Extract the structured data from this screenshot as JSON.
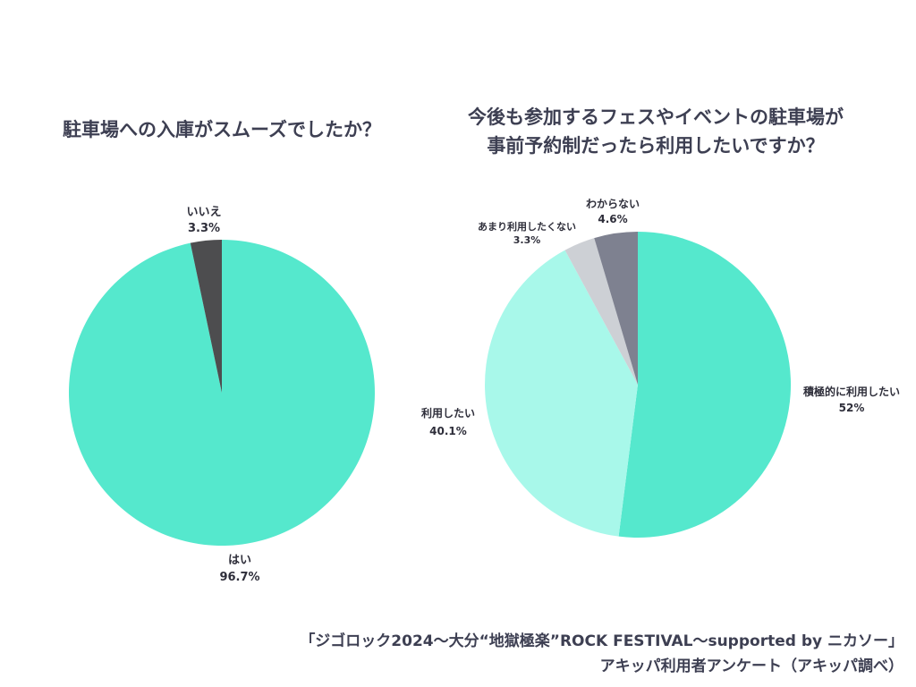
{
  "chart_data": [
    {
      "type": "pie",
      "title": "駐車場への入庫がスムーズでしたか？",
      "slices": [
        {
          "label": "はい",
          "value": 96.7,
          "value_label": "96.7%",
          "color": "#55e8cd"
        },
        {
          "label": "いいえ",
          "value": 3.3,
          "value_label": "3.3%",
          "color": "#4d4d4f"
        }
      ]
    },
    {
      "type": "pie",
      "title": [
        "今後も参加するフェスやイベントの駐車場が",
        "事前予約制だったら利用したいですか？"
      ],
      "slices": [
        {
          "label": "積極的に利用したい",
          "value": 52,
          "value_label": "52%",
          "color": "#55e8cd"
        },
        {
          "label": "利用したい",
          "value": 40.1,
          "value_label": "40.1%",
          "color": "#a8f8ea"
        },
        {
          "label": "あまり利用したくない",
          "value": 3.3,
          "value_label": "3.3%",
          "color": "#cdd0d5"
        },
        {
          "label": "わからない",
          "value": 4.6,
          "value_label": "4.6%",
          "color": "#7e8190"
        }
      ]
    }
  ],
  "footer": {
    "line1": "「ジゴロック2024〜大分“地獄極楽”ROCK FESTIVAL〜supported by ニカソー」",
    "line2": "アキッパ利用者アンケート（アキッパ調べ）"
  }
}
